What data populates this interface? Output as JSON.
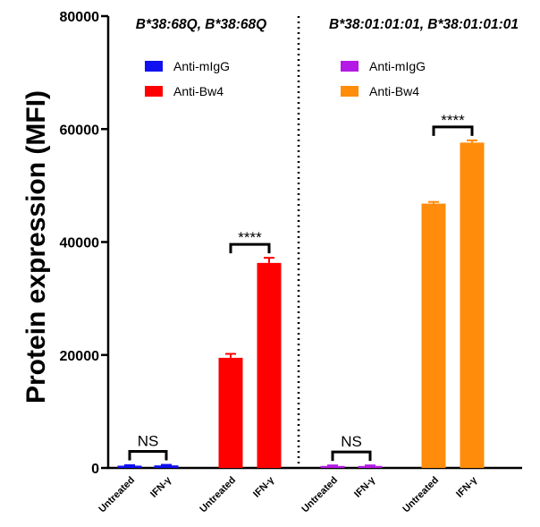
{
  "chart_data": {
    "type": "bar",
    "ylabel": "Protein expression (MFI)",
    "ylim": [
      0,
      80000
    ],
    "yticks": [
      "0",
      "20000",
      "40000",
      "60000",
      "80000"
    ],
    "grid": false,
    "panels": [
      {
        "title": "B*38:68Q, B*38:68Q",
        "series": [
          {
            "name": "Anti-mIgG",
            "color": "#1010f0",
            "categories": [
              "Untreated",
              "IFN-γ"
            ],
            "values": [
              400,
              450
            ],
            "errors": [
              100,
              100
            ]
          },
          {
            "name": "Anti-Bw4",
            "color": "#ff0000",
            "categories": [
              "Untreated",
              "IFN-γ"
            ],
            "values": [
              19500,
              36300
            ],
            "errors": [
              700,
              900
            ]
          }
        ],
        "significance": [
          {
            "series": "Anti-mIgG",
            "label": "NS"
          },
          {
            "series": "Anti-Bw4",
            "label": "****"
          }
        ]
      },
      {
        "title": "B*38:01:01:01, B*38:01:01:01",
        "series": [
          {
            "name": "Anti-mIgG",
            "color": "#b41ae6",
            "categories": [
              "Untreated",
              "IFN-γ"
            ],
            "values": [
              350,
              350
            ],
            "errors": [
              100,
              100
            ]
          },
          {
            "name": "Anti-Bw4",
            "color": "#ff8c0a",
            "categories": [
              "Untreated",
              "IFN-γ"
            ],
            "values": [
              46800,
              57600
            ],
            "errors": [
              300,
              400
            ]
          }
        ],
        "significance": [
          {
            "series": "Anti-mIgG",
            "label": "NS"
          },
          {
            "series": "Anti-Bw4",
            "label": "****"
          }
        ]
      }
    ]
  }
}
